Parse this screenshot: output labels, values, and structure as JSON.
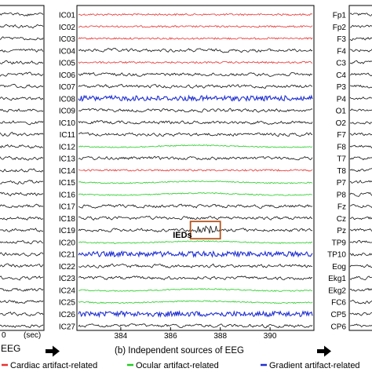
{
  "chart_data": {
    "type": "line",
    "title": "",
    "panel_b_caption": "(b) Independent sources of EEG",
    "left_panel_unit": "(sec)",
    "left_panel_tick_label": "0",
    "left_panel_caption": "EEG",
    "xlabel": "",
    "ylabel": "",
    "x_ticks": [
      384,
      386,
      388,
      390
    ],
    "xlim": [
      382.3,
      391.7
    ],
    "components": [
      {
        "label": "IC01",
        "category": "cardiac"
      },
      {
        "label": "IC02",
        "category": "cardiac"
      },
      {
        "label": "IC03",
        "category": "cardiac"
      },
      {
        "label": "IC04",
        "category": "neural"
      },
      {
        "label": "IC05",
        "category": "cardiac"
      },
      {
        "label": "IC06",
        "category": "neural"
      },
      {
        "label": "IC07",
        "category": "neural"
      },
      {
        "label": "IC08",
        "category": "gradient"
      },
      {
        "label": "IC09",
        "category": "neural"
      },
      {
        "label": "IC10",
        "category": "neural"
      },
      {
        "label": "IC11",
        "category": "neural"
      },
      {
        "label": "IC12",
        "category": "ocular"
      },
      {
        "label": "IC13",
        "category": "neural"
      },
      {
        "label": "IC14",
        "category": "cardiac"
      },
      {
        "label": "IC15",
        "category": "ocular"
      },
      {
        "label": "IC16",
        "category": "ocular"
      },
      {
        "label": "IC17",
        "category": "neural"
      },
      {
        "label": "IC18",
        "category": "neural"
      },
      {
        "label": "IC19",
        "category": "neural"
      },
      {
        "label": "IC20",
        "category": "ocular"
      },
      {
        "label": "IC21",
        "category": "gradient"
      },
      {
        "label": "IC22",
        "category": "neural"
      },
      {
        "label": "IC23",
        "category": "neural"
      },
      {
        "label": "IC24",
        "category": "ocular"
      },
      {
        "label": "IC25",
        "category": "ocular"
      },
      {
        "label": "IC26",
        "category": "gradient"
      },
      {
        "label": "IC27",
        "category": "neural"
      }
    ],
    "channels": [
      "Fp1",
      "Fp2",
      "F3",
      "F4",
      "C3",
      "C4",
      "P3",
      "P4",
      "O1",
      "O2",
      "F7",
      "F8",
      "T7",
      "T8",
      "P7",
      "P8",
      "Fz",
      "Cz",
      "Pz",
      "TP9",
      "TP10",
      "Eog",
      "Ekg1",
      "Ekg2",
      "FC6",
      "CP5",
      "CP6"
    ],
    "annotation": {
      "label": "IEDs",
      "component": "IC19",
      "x_range": [
        386.8,
        388.0
      ]
    },
    "legend_placement": "bottom",
    "legend": [
      {
        "key": "cardiac",
        "label": "Cardiac artifact-related",
        "color": "#e8312f"
      },
      {
        "key": "ocular",
        "label": "Ocular artifact-related",
        "color": "#22cc22"
      },
      {
        "key": "gradient",
        "label": "Gradient artifact-related",
        "color": "#1f2fd1"
      }
    ],
    "colors": {
      "neural": "#111111",
      "annotation_box": "#b4541e"
    },
    "grid": false
  }
}
